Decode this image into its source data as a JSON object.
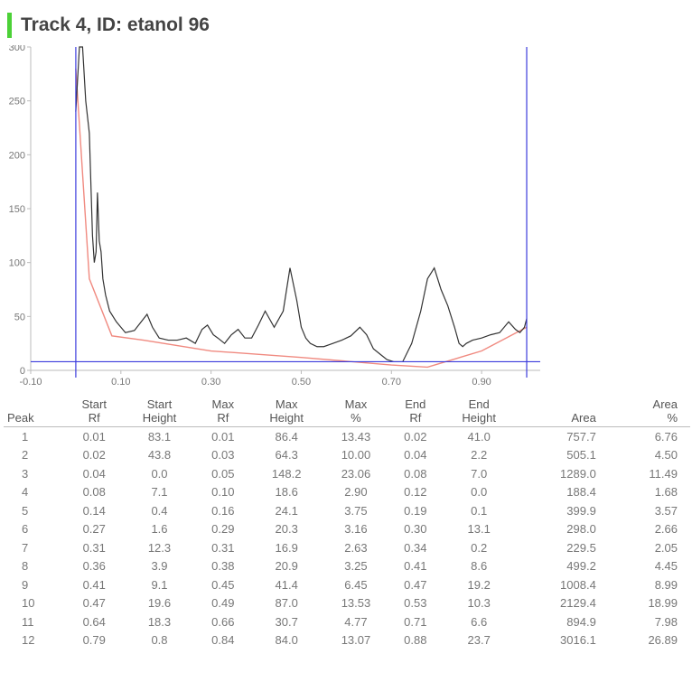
{
  "title": "Track 4, ID: etanol 96",
  "colors": {
    "accent": "#4cd137",
    "trace": "#333333",
    "baseline": "#f08a80",
    "marker": "#3b3bdc"
  },
  "chart_data": {
    "type": "line",
    "title": "Track 4, ID: etanol 96",
    "xlabel": "",
    "ylabel": "",
    "xlim": [
      -0.1,
      1.03
    ],
    "ylim": [
      0,
      300
    ],
    "x_ticks": [
      "-0.10",
      "0.10",
      "0.30",
      "0.50",
      "0.70",
      "0.90"
    ],
    "x_tick_values": [
      -0.1,
      0.1,
      0.3,
      0.5,
      0.7,
      0.9
    ],
    "y_ticks": [
      "0",
      "50",
      "100",
      "150",
      "200",
      "250",
      "300"
    ],
    "y_tick_values": [
      0,
      50,
      100,
      150,
      200,
      250,
      300
    ],
    "vertical_markers": [
      0.0,
      1.0
    ],
    "horizontal_marker": 8,
    "series": [
      {
        "x": [
          0.0,
          0.008,
          0.015,
          0.022,
          0.03,
          0.037,
          0.041,
          0.045,
          0.048,
          0.052,
          0.056,
          0.06,
          0.066,
          0.075,
          0.09,
          0.11,
          0.13,
          0.145,
          0.158,
          0.17,
          0.185,
          0.205,
          0.225,
          0.245,
          0.265,
          0.28,
          0.292,
          0.305,
          0.315,
          0.33,
          0.345,
          0.36,
          0.375,
          0.39,
          0.405,
          0.42,
          0.44,
          0.46,
          0.475,
          0.49,
          0.5,
          0.51,
          0.52,
          0.535,
          0.55,
          0.57,
          0.59,
          0.61,
          0.63,
          0.645,
          0.66,
          0.675,
          0.69,
          0.705,
          0.725,
          0.745,
          0.765,
          0.78,
          0.795,
          0.81,
          0.825,
          0.84,
          0.85,
          0.858,
          0.866,
          0.88,
          0.9,
          0.92,
          0.94,
          0.96,
          0.975,
          0.985,
          0.995,
          1.0
        ],
        "y": [
          240,
          300,
          300,
          250,
          220,
          125,
          100,
          110,
          165,
          120,
          110,
          85,
          70,
          55,
          45,
          35,
          37,
          45,
          52,
          40,
          30,
          28,
          28,
          30,
          25,
          38,
          42,
          33,
          30,
          25,
          33,
          38,
          30,
          30,
          42,
          55,
          40,
          55,
          95,
          65,
          40,
          30,
          25,
          22,
          22,
          25,
          28,
          32,
          40,
          33,
          20,
          15,
          10,
          8,
          8,
          25,
          55,
          85,
          95,
          75,
          60,
          40,
          25,
          22,
          25,
          28,
          30,
          33,
          35,
          45,
          38,
          35,
          40,
          48
        ]
      },
      {
        "x": [
          0.0,
          0.03,
          0.08,
          0.15,
          0.3,
          0.5,
          0.7,
          0.78,
          0.9,
          1.0
        ],
        "y": [
          280,
          85,
          32,
          28,
          18,
          12,
          5,
          3,
          18,
          40
        ]
      }
    ],
    "table": {
      "columns": [
        "Peak",
        "Start Rf",
        "Start Height",
        "Max Rf",
        "Max Height",
        "Max %",
        "End Rf",
        "End Height",
        "Area",
        "Area %"
      ],
      "rows": [
        [
          "1",
          "0.01",
          "83.1",
          "0.01",
          "86.4",
          "13.43",
          "0.02",
          "41.0",
          "757.7",
          "6.76"
        ],
        [
          "2",
          "0.02",
          "43.8",
          "0.03",
          "64.3",
          "10.00",
          "0.04",
          "2.2",
          "505.1",
          "4.50"
        ],
        [
          "3",
          "0.04",
          "0.0",
          "0.05",
          "148.2",
          "23.06",
          "0.08",
          "7.0",
          "1289.0",
          "11.49"
        ],
        [
          "4",
          "0.08",
          "7.1",
          "0.10",
          "18.6",
          "2.90",
          "0.12",
          "0.0",
          "188.4",
          "1.68"
        ],
        [
          "5",
          "0.14",
          "0.4",
          "0.16",
          "24.1",
          "3.75",
          "0.19",
          "0.1",
          "399.9",
          "3.57"
        ],
        [
          "6",
          "0.27",
          "1.6",
          "0.29",
          "20.3",
          "3.16",
          "0.30",
          "13.1",
          "298.0",
          "2.66"
        ],
        [
          "7",
          "0.31",
          "12.3",
          "0.31",
          "16.9",
          "2.63",
          "0.34",
          "0.2",
          "229.5",
          "2.05"
        ],
        [
          "8",
          "0.36",
          "3.9",
          "0.38",
          "20.9",
          "3.25",
          "0.41",
          "8.6",
          "499.2",
          "4.45"
        ],
        [
          "9",
          "0.41",
          "9.1",
          "0.45",
          "41.4",
          "6.45",
          "0.47",
          "19.2",
          "1008.4",
          "8.99"
        ],
        [
          "10",
          "0.47",
          "19.6",
          "0.49",
          "87.0",
          "13.53",
          "0.53",
          "10.3",
          "2129.4",
          "18.99"
        ],
        [
          "11",
          "0.64",
          "18.3",
          "0.66",
          "30.7",
          "4.77",
          "0.71",
          "6.6",
          "894.9",
          "7.98"
        ],
        [
          "12",
          "0.79",
          "0.8",
          "0.84",
          "84.0",
          "13.07",
          "0.88",
          "23.7",
          "3016.1",
          "26.89"
        ]
      ]
    }
  },
  "table_header": {
    "peak": "Peak",
    "start_rf": [
      "Start",
      "Rf"
    ],
    "start_height": [
      "Start",
      "Height"
    ],
    "max_rf": [
      "Max",
      "Rf"
    ],
    "max_height": [
      "Max",
      "Height"
    ],
    "max_pct": [
      "Max",
      "%"
    ],
    "end_rf": [
      "End",
      "Rf"
    ],
    "end_height": [
      "End",
      "Height"
    ],
    "area": "Area",
    "area_pct": [
      "Area",
      "%"
    ]
  }
}
